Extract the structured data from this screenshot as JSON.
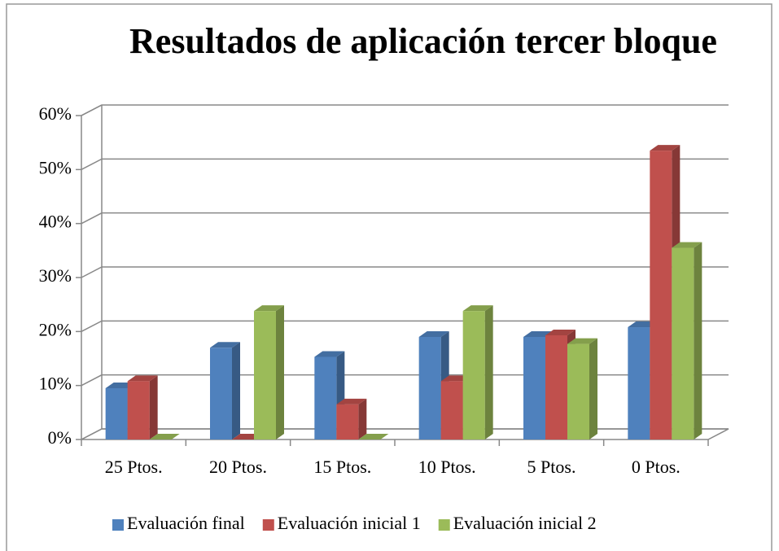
{
  "chart_data": {
    "type": "bar3d",
    "title": "Resultados  de aplicación tercer bloque",
    "categories": [
      "25 Ptos.",
      "20 Ptos.",
      "15 Ptos.",
      "10 Ptos.",
      "5 Ptos.",
      "0 Ptos."
    ],
    "series": [
      {
        "name": "Evaluación final",
        "color": "#4f81bd",
        "values": [
          9.5,
          17,
          15.3,
          19,
          19,
          20.8
        ]
      },
      {
        "name": "Evaluación inicial 1",
        "color": "#c0504d",
        "values": [
          10.8,
          0,
          6.5,
          10.8,
          19.3,
          53.5
        ]
      },
      {
        "name": "Evaluación inicial 2",
        "color": "#9bbb59",
        "values": [
          0,
          23.8,
          0,
          23.8,
          17.7,
          35.5
        ]
      }
    ],
    "ylim": [
      0,
      60
    ],
    "yticks": [
      {
        "value": 0,
        "label": "0%"
      },
      {
        "value": 10,
        "label": "10%"
      },
      {
        "value": 20,
        "label": "20%"
      },
      {
        "value": 30,
        "label": "30%"
      },
      {
        "value": 40,
        "label": "40%"
      },
      {
        "value": 50,
        "label": "50%"
      },
      {
        "value": 60,
        "label": "60%"
      }
    ],
    "grid": true,
    "legend": "bottom"
  }
}
